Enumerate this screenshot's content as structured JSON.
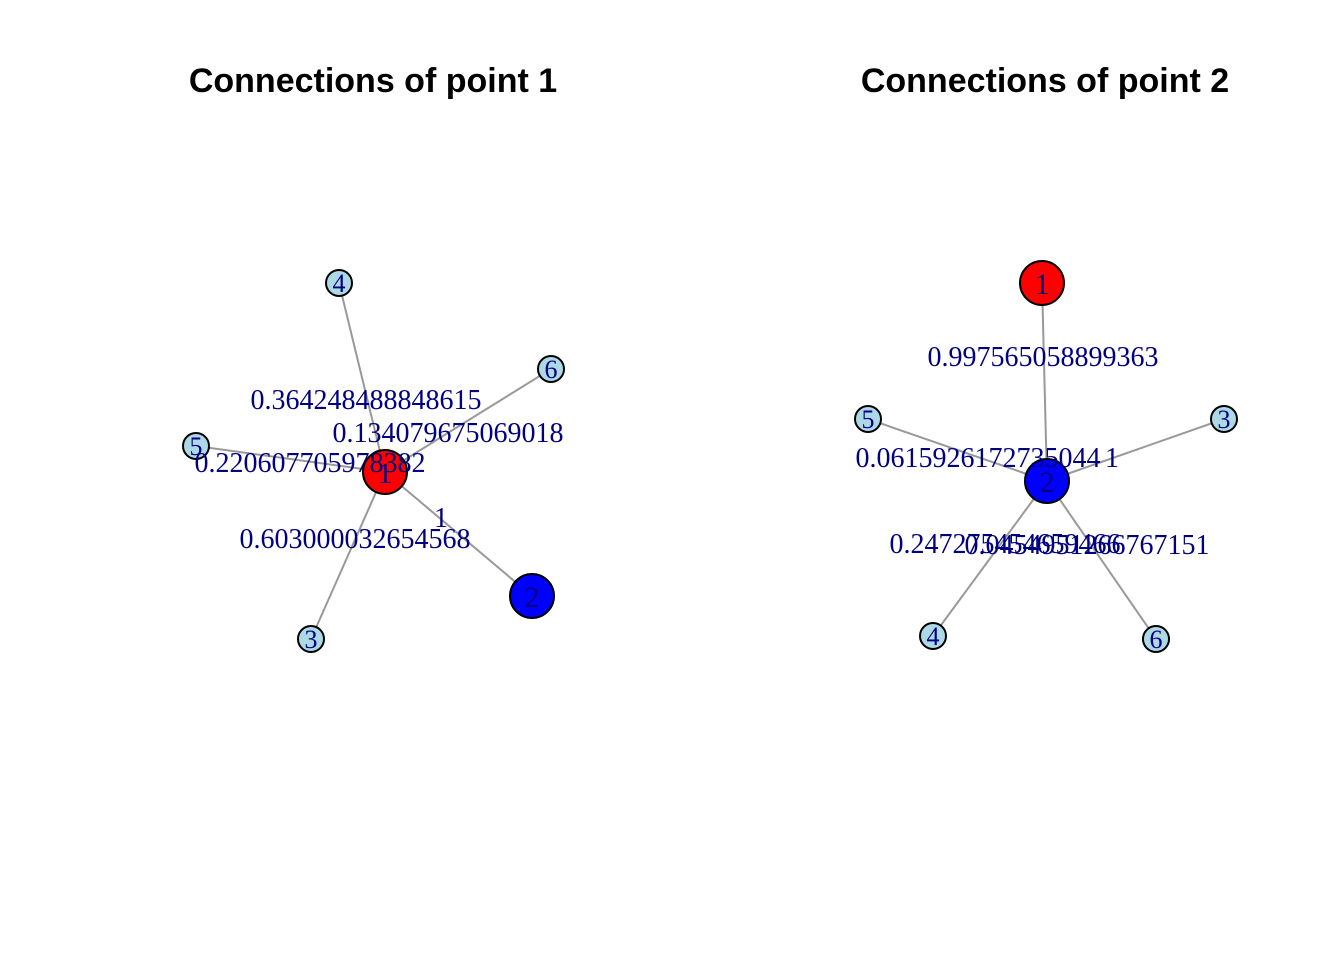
{
  "colors": {
    "center": "#ff0000",
    "partner": "#0000ff",
    "other": "#add8e6",
    "edge": "#999999",
    "label": "#000080"
  },
  "panels": [
    {
      "title": "Connections of point 1",
      "nodes": [
        {
          "id": "1",
          "role": "center"
        },
        {
          "id": "2",
          "role": "partner"
        },
        {
          "id": "3",
          "role": "other"
        },
        {
          "id": "4",
          "role": "other"
        },
        {
          "id": "5",
          "role": "other"
        },
        {
          "id": "6",
          "role": "other"
        }
      ],
      "edges": [
        {
          "from": "1",
          "to": "4",
          "weight": "0.364248488848615"
        },
        {
          "from": "1",
          "to": "6",
          "weight": "0.134079675069018"
        },
        {
          "from": "1",
          "to": "5",
          "weight": "0.220607705978382"
        },
        {
          "from": "1",
          "to": "2",
          "weight": "1"
        },
        {
          "from": "1",
          "to": "3",
          "weight": "0.603000032654568"
        }
      ]
    },
    {
      "title": "Connections of point 2",
      "nodes": [
        {
          "id": "1",
          "role": "center"
        },
        {
          "id": "2",
          "role": "partner"
        },
        {
          "id": "3",
          "role": "other"
        },
        {
          "id": "4",
          "role": "other"
        },
        {
          "id": "5",
          "role": "other"
        },
        {
          "id": "6",
          "role": "other"
        }
      ],
      "edges": [
        {
          "from": "2",
          "to": "1",
          "weight": "0.997565058899363"
        },
        {
          "from": "2",
          "to": "5",
          "weight": "0.0615926172735044"
        },
        {
          "from": "2",
          "to": "3",
          "weight": "1"
        },
        {
          "from": "2",
          "to": "4",
          "weight": "0.247275454659466"
        },
        {
          "from": "2",
          "to": "6",
          "weight": "0.0454951266767151"
        }
      ]
    }
  ]
}
